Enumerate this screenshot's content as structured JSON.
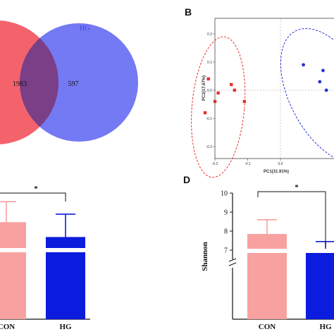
{
  "panels": {
    "B": "B",
    "D": "D"
  },
  "chart_data": [
    {
      "panel": "A",
      "type": "venn",
      "sets": [
        {
          "name": "",
          "color": "#f4626b"
        },
        {
          "name": "HG",
          "color": "#6d72f3"
        }
      ],
      "values": {
        "overlap": 1983,
        "hg_only": 597
      },
      "labels": {
        "overlap": "1983",
        "hg_only": "597"
      }
    },
    {
      "panel": "B",
      "type": "scatter",
      "xlabel": "PC1(31.91%)",
      "ylabel": "PC2(17.67%)",
      "xlim": [
        -0.3,
        0.3
      ],
      "ylim": [
        -0.25,
        0.25
      ],
      "x_ticks": [
        {
          "v": -0.2,
          "label": "-0.2"
        },
        {
          "v": -0.1,
          "label": "-0.1"
        },
        {
          "v": 0.0,
          "label": "0.0"
        },
        {
          "v": 0.2,
          "label": "0.2"
        }
      ],
      "y_ticks": [
        {
          "v": 0.2,
          "label": "0.2"
        },
        {
          "v": 0.1,
          "label": "0.1"
        },
        {
          "v": 0.0,
          "label": "0.0"
        },
        {
          "v": -0.1,
          "label": "-0.1"
        },
        {
          "v": -0.2,
          "label": "-0.2"
        }
      ],
      "series": [
        {
          "color": "#e5302e",
          "marker": "square",
          "x": [
            -0.22,
            -0.19,
            -0.15,
            -0.14,
            -0.11,
            -0.2,
            -0.23
          ],
          "y": [
            0.04,
            -0.01,
            0.02,
            0.0,
            -0.04,
            -0.04,
            -0.08
          ]
        },
        {
          "color": "#2a34cf",
          "marker": "circle",
          "x": [
            0.07,
            0.12,
            0.13,
            0.14,
            0.2,
            0.24,
            0.25
          ],
          "y": [
            0.09,
            0.03,
            0.07,
            0.0,
            0.0,
            0.04,
            0.0
          ]
        }
      ],
      "ellipses": [
        {
          "color": "#e5302e",
          "cx": -0.19,
          "cy": -0.06,
          "rx": 0.08,
          "ry": 0.25,
          "rotate": 5
        },
        {
          "color": "#2a34cf",
          "cx": 0.15,
          "cy": -0.02,
          "rx": 0.12,
          "ry": 0.26,
          "rotate": -28
        }
      ]
    },
    {
      "panel": "C",
      "type": "bar",
      "categories": [
        "CON",
        "HG"
      ],
      "values": [
        0.85,
        0.72
      ],
      "errors": [
        0.18,
        0.2
      ],
      "colors": [
        "#f7a1a1",
        "#0b1cde"
      ],
      "significance": "*",
      "axis_break": true
    },
    {
      "panel": "D",
      "type": "bar",
      "categories": [
        "CON",
        "HG"
      ],
      "values": [
        7.85,
        7.05
      ],
      "errors": [
        0.75,
        0.4
      ],
      "colors": [
        "#f7a1a1",
        "#0b1cde"
      ],
      "ylabel": "Shannon",
      "ylim": [
        6.8,
        10
      ],
      "y_ticks": [
        {
          "v": 7,
          "label": "7"
        },
        {
          "v": 8,
          "label": "8"
        },
        {
          "v": 9,
          "label": "9"
        },
        {
          "v": 10,
          "label": "10"
        }
      ],
      "significance": "*",
      "axis_break": true
    }
  ]
}
